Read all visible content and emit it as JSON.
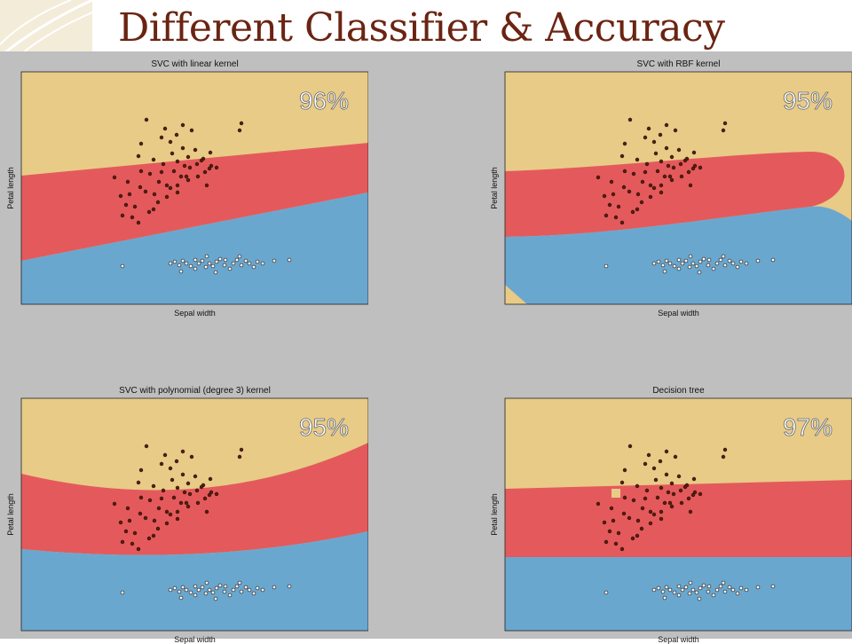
{
  "slide": {
    "title": "Different Classifier & Accuracy"
  },
  "colors": {
    "region_top": "#e8cb87",
    "region_middle": "#e45a5c",
    "region_bottom": "#6aa7cf",
    "point_dark": "#5a1e12",
    "point_light": "#ffffff",
    "background": "#bfbfbf",
    "title": "#6b2412"
  },
  "chart_data": [
    {
      "type": "scatter",
      "title": "SVC with linear kernel",
      "xlabel": "Sepal width",
      "ylabel": "Petal length",
      "accuracy": "96%",
      "boundary": "linear"
    },
    {
      "type": "scatter",
      "title": "SVC with RBF kernel",
      "xlabel": "Sepal width",
      "ylabel": "Petal length",
      "accuracy": "95%",
      "boundary": "rbf"
    },
    {
      "type": "scatter",
      "title": "SVC with polynomial (degree 3) kernel",
      "xlabel": "Sepal width",
      "ylabel": "Petal length",
      "accuracy": "95%",
      "boundary": "polynomial"
    },
    {
      "type": "scatter",
      "title": "Decision tree",
      "xlabel": "Sepal width",
      "ylabel": "Petal length",
      "accuracy": "97%",
      "boundary": "tree"
    }
  ]
}
